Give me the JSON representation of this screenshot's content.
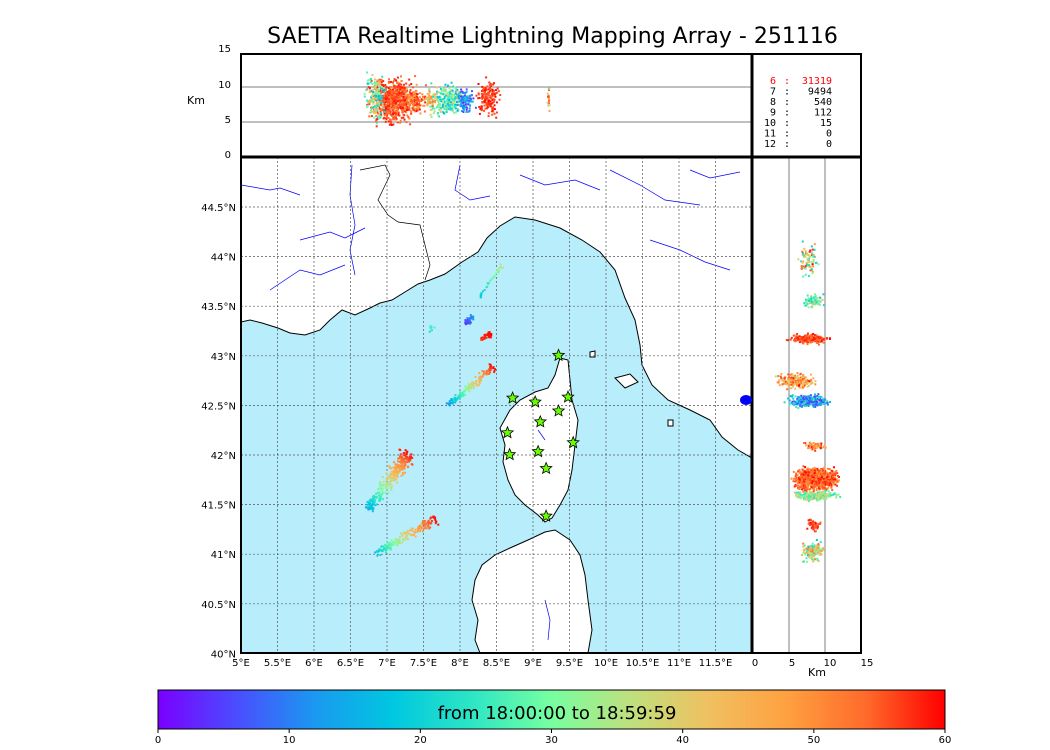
{
  "title": "SAETTA Realtime Lightning Mapping Array - 251116",
  "colorbar": {
    "label": "from 18:00:00 to 18:59:59",
    "ticks": [
      "0",
      "10",
      "20",
      "30",
      "40",
      "50",
      "60"
    ],
    "stops": [
      "#7a00ff",
      "#4a4dff",
      "#1a99f0",
      "#00c8e0",
      "#2ee6c4",
      "#77ffa0",
      "#bfe07e",
      "#f0c060",
      "#ffa040",
      "#ff6a2a",
      "#ff0000"
    ]
  },
  "colors": {
    "sea": "#b8eefc",
    "land": "#ffffff",
    "coast": "#000000",
    "river": "#0000ff",
    "border": "#000000",
    "station": "#66ff00",
    "hot": "#ff0000"
  },
  "alt_panel": {
    "ylabel": "Km",
    "yticks": [
      "15",
      "10",
      "5",
      "0"
    ],
    "counts": [
      {
        "alt": "6",
        "sep": ":",
        "count": "31319",
        "highlight": true
      },
      {
        "alt": "7",
        "sep": ":",
        "count": "9494",
        "highlight": false
      },
      {
        "alt": "8",
        "sep": ":",
        "count": "540",
        "highlight": false
      },
      {
        "alt": "9",
        "sep": ":",
        "count": "112",
        "highlight": false
      },
      {
        "alt": "10",
        "sep": ":",
        "count": "15",
        "highlight": false
      },
      {
        "alt": "11",
        "sep": ":",
        "count": "0",
        "highlight": false
      },
      {
        "alt": "12",
        "sep": ":",
        "count": "0",
        "highlight": false
      }
    ]
  },
  "map": {
    "lon_ticks": [
      "5°E",
      "5.5°E",
      "6°E",
      "6.5°E",
      "7°E",
      "7.5°E",
      "8°E",
      "8.5°E",
      "9°E",
      "9.5°E",
      "10°E",
      "10.5°E",
      "11°E",
      "11.5°E"
    ],
    "lat_ticks": [
      "44.5°N",
      "44°N",
      "43.5°N",
      "43°N",
      "42.5°N",
      "42°N",
      "41.5°N",
      "41°N",
      "40.5°N",
      "40°N"
    ],
    "lon_range": [
      5,
      12
    ],
    "lat_range": [
      40,
      45
    ],
    "stations": [
      {
        "lon": 9.35,
        "lat": 43.0
      },
      {
        "lon": 8.72,
        "lat": 42.57
      },
      {
        "lon": 9.03,
        "lat": 42.53
      },
      {
        "lon": 9.48,
        "lat": 42.58
      },
      {
        "lon": 9.1,
        "lat": 42.33
      },
      {
        "lon": 9.35,
        "lat": 42.44
      },
      {
        "lon": 8.65,
        "lat": 42.22
      },
      {
        "lon": 9.55,
        "lat": 42.12
      },
      {
        "lon": 8.68,
        "lat": 42.0
      },
      {
        "lon": 9.07,
        "lat": 42.03
      },
      {
        "lon": 9.18,
        "lat": 41.86
      },
      {
        "lon": 9.18,
        "lat": 41.38
      }
    ]
  },
  "right_panel": {
    "xlabel": "Km",
    "xticks": [
      "0",
      "5",
      "10",
      "15"
    ]
  }
}
